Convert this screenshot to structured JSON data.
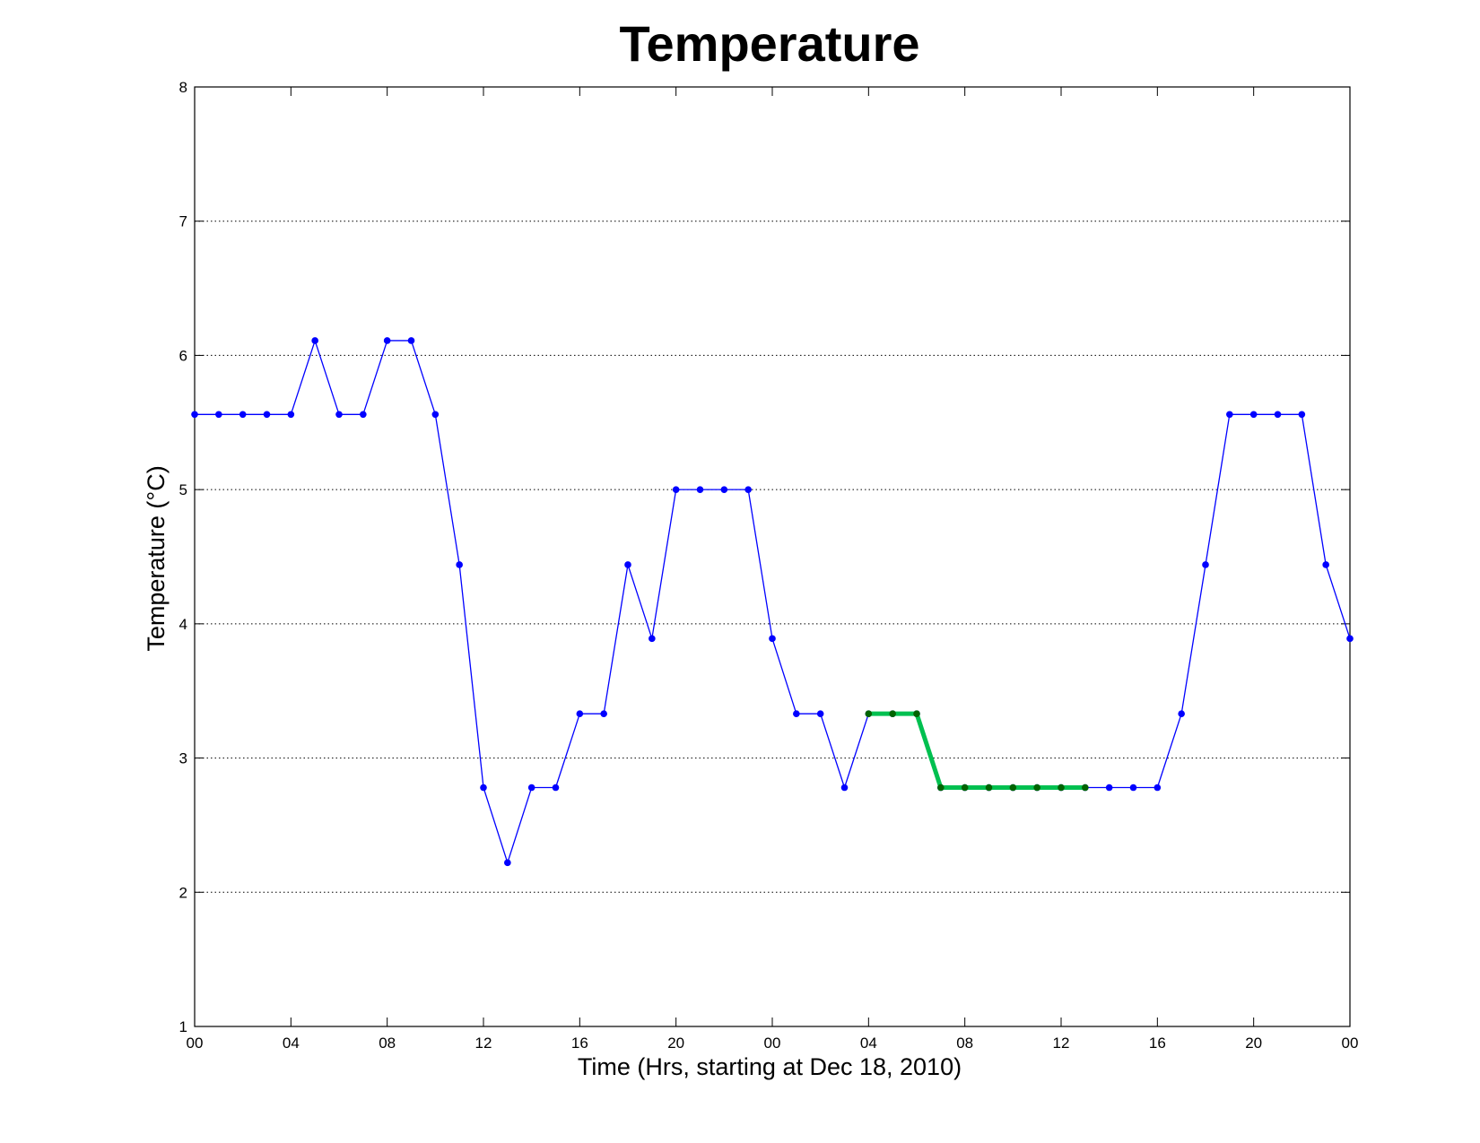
{
  "chart_data": {
    "type": "line",
    "title": "Temperature",
    "xlabel": "Time (Hrs, starting at Dec 18, 2010)",
    "ylabel": "Temperature (°C)",
    "xlim": [
      0,
      48
    ],
    "ylim": [
      1,
      8
    ],
    "yticks": [
      1,
      2,
      3,
      4,
      5,
      6,
      7,
      8
    ],
    "xticks": [
      {
        "x": 0,
        "label": "00"
      },
      {
        "x": 4,
        "label": "04"
      },
      {
        "x": 8,
        "label": "08"
      },
      {
        "x": 12,
        "label": "12"
      },
      {
        "x": 16,
        "label": "16"
      },
      {
        "x": 20,
        "label": "20"
      },
      {
        "x": 24,
        "label": "00"
      },
      {
        "x": 28,
        "label": "04"
      },
      {
        "x": 32,
        "label": "08"
      },
      {
        "x": 36,
        "label": "12"
      },
      {
        "x": 40,
        "label": "16"
      },
      {
        "x": 44,
        "label": "20"
      },
      {
        "x": 48,
        "label": "00"
      }
    ],
    "grid": "horizontal dotted",
    "series": [
      {
        "color": "#0000ff",
        "x": [
          0,
          1,
          2,
          3,
          4,
          5,
          6,
          7,
          8,
          9,
          10,
          11,
          12,
          13,
          14,
          15,
          16,
          17,
          18,
          19,
          20,
          21,
          22,
          23,
          24,
          25,
          26,
          27,
          28,
          29,
          30,
          31,
          32,
          33,
          34,
          35,
          36,
          37,
          38,
          39,
          40,
          41,
          42,
          43,
          44,
          45,
          46,
          47,
          48
        ],
        "values": [
          5.56,
          5.56,
          5.56,
          5.56,
          5.56,
          6.11,
          5.56,
          5.56,
          6.11,
          6.11,
          5.56,
          4.44,
          2.78,
          2.22,
          2.78,
          2.78,
          3.33,
          3.33,
          4.44,
          3.89,
          5.0,
          5.0,
          5.0,
          5.0,
          3.89,
          3.33,
          3.33,
          2.78,
          3.33,
          3.33,
          3.33,
          2.78,
          2.78,
          2.78,
          2.78,
          2.78,
          2.78,
          2.78,
          2.78,
          2.78,
          2.78,
          3.33,
          4.44,
          5.56,
          5.56,
          5.56,
          5.56,
          4.44,
          3.89
        ]
      },
      {
        "color": "#00c050",
        "marker_color": "#006400",
        "x": [
          28,
          29,
          30,
          31,
          32,
          33,
          34,
          35,
          36,
          37
        ],
        "values": [
          3.33,
          3.33,
          3.33,
          2.78,
          2.78,
          2.78,
          2.78,
          2.78,
          2.78,
          2.78
        ]
      }
    ]
  }
}
